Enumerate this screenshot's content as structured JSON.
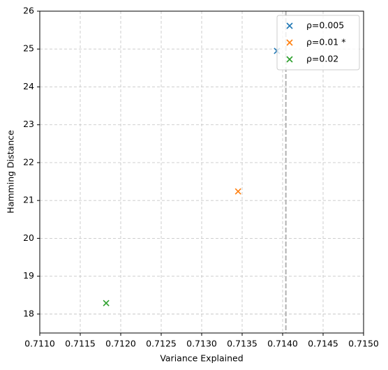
{
  "chart_data": {
    "type": "scatter",
    "x_label": "Variance Explained",
    "y_label": "Hamming Distance",
    "xlim": [
      0.711,
      0.715
    ],
    "xticks": [
      {
        "value": 0.711,
        "label": "0.7110"
      },
      {
        "value": 0.7115,
        "label": "0.7115"
      },
      {
        "value": 0.712,
        "label": "0.7120"
      },
      {
        "value": 0.7125,
        "label": "0.7125"
      },
      {
        "value": 0.713,
        "label": "0.7130"
      },
      {
        "value": 0.7135,
        "label": "0.7135"
      },
      {
        "value": 0.714,
        "label": "0.7140"
      },
      {
        "value": 0.7145,
        "label": "0.7145"
      },
      {
        "value": 0.715,
        "label": "0.7150"
      }
    ],
    "ylim": [
      17.5,
      26
    ],
    "yticks": [
      18,
      19,
      20,
      21,
      22,
      23,
      24,
      25,
      26
    ],
    "grid": true,
    "legend": "upper right",
    "vline": {
      "value": 0.71404,
      "color": "#b0b0b0"
    },
    "series": [
      {
        "name": "ρ=0.005",
        "color": "#1f77b4",
        "x": [
          0.71393
        ],
        "values": [
          24.95
        ]
      },
      {
        "name": "ρ=0.01 *",
        "color": "#ff7f0e",
        "x": [
          0.71345
        ],
        "values": [
          21.24
        ]
      },
      {
        "name": "ρ=0.02",
        "color": "#2ca02c",
        "x": [
          0.71182
        ],
        "values": [
          18.29
        ]
      }
    ]
  }
}
